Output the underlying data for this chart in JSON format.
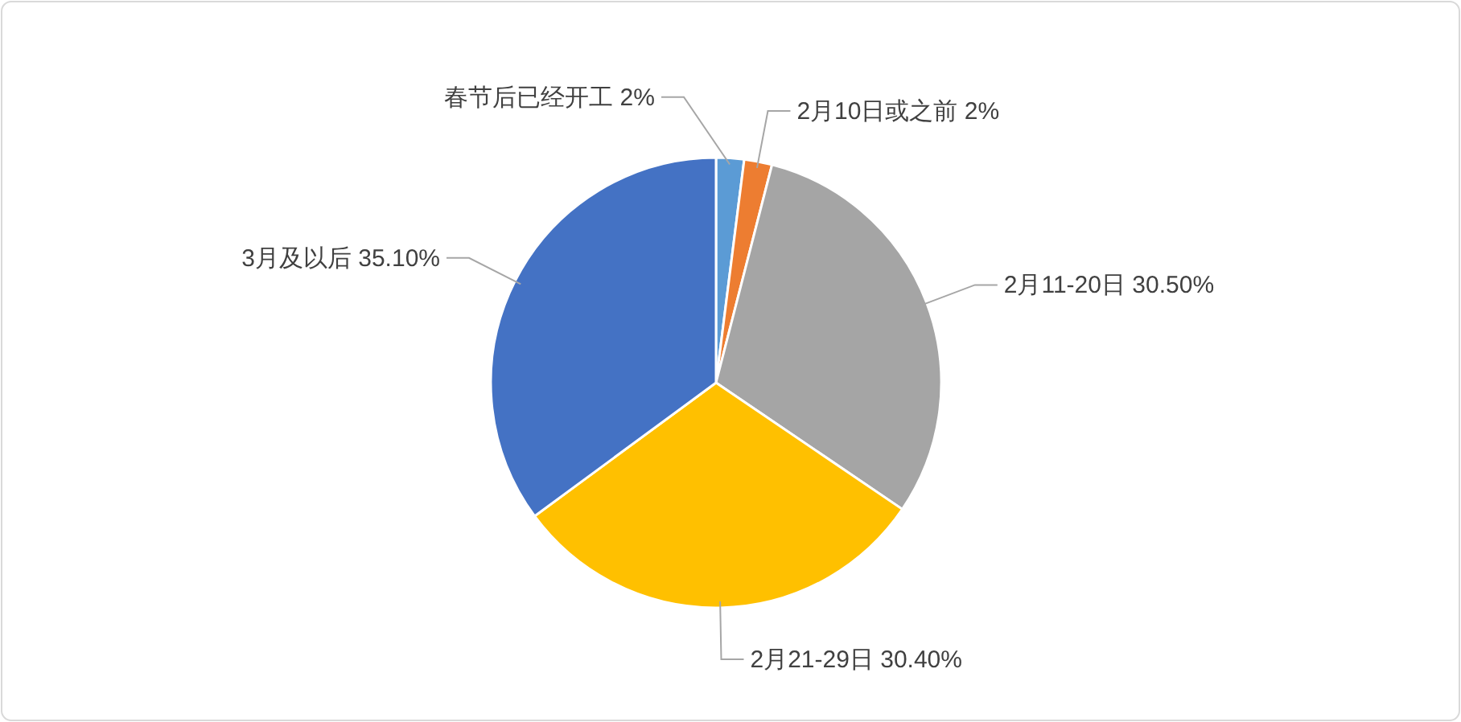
{
  "chart_data": {
    "type": "pie",
    "categories": [
      "春节后已经开工",
      "2月10日或之前",
      "2月11-20日",
      "2月21-29日",
      "3月及以后"
    ],
    "values": [
      2,
      2,
      30.5,
      30.4,
      35.1
    ],
    "value_labels": [
      "2%",
      "2%",
      "30.50%",
      "30.40%",
      "35.10%"
    ],
    "colors": [
      "#5b9bd5",
      "#ed7d31",
      "#a5a5a5",
      "#ffc000",
      "#4472c4"
    ]
  }
}
